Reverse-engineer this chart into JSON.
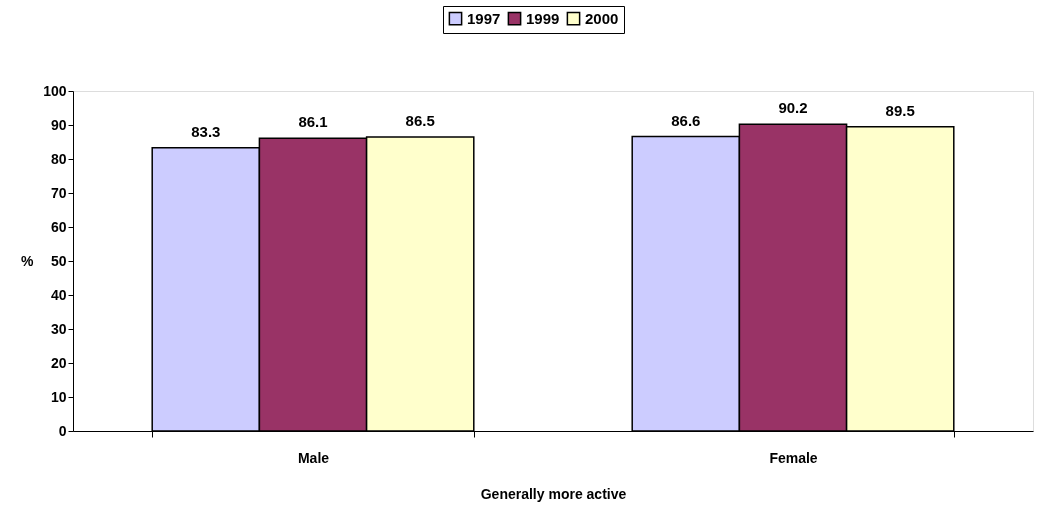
{
  "chart_data": {
    "type": "bar",
    "xlabel": "Generally more active",
    "ylabel": "%",
    "categories": [
      "Male",
      "Female"
    ],
    "series": [
      {
        "name": "1997",
        "color": "#ccccff",
        "values": [
          83.3,
          86.6
        ]
      },
      {
        "name": "1999",
        "color": "#993366",
        "values": [
          86.1,
          90.2
        ]
      },
      {
        "name": "2000",
        "color": "#ffffcc",
        "values": [
          86.5,
          89.5
        ]
      }
    ],
    "ylim": [
      0,
      100
    ],
    "yticks": [
      0,
      10,
      20,
      30,
      40,
      50,
      60,
      70,
      80,
      90,
      100
    ],
    "data_labels": true,
    "legend": "top",
    "grid": false
  }
}
